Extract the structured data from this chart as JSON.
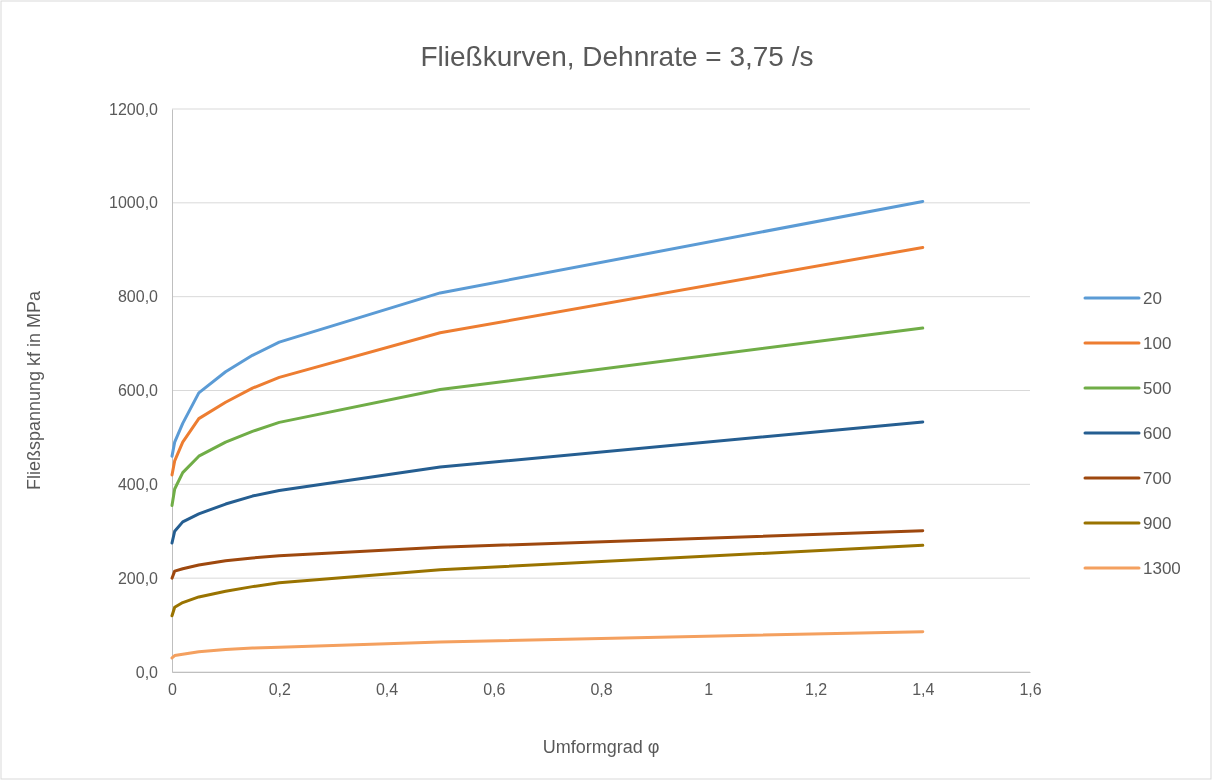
{
  "chart_data": {
    "type": "line",
    "title": "Fließkurven, Dehnrate = 3,75 /s",
    "xlabel": "Umformgrad φ",
    "ylabel": "Fließspannung kf in MPa",
    "x": [
      0,
      0.005,
      0.02,
      0.05,
      0.1,
      0.15,
      0.2,
      0.5,
      1.4
    ],
    "series": [
      {
        "name": "20",
        "color": "#5b9bd5",
        "values": [
          460,
          490,
          530,
          595,
          640,
          675,
          703,
          808,
          1003
        ]
      },
      {
        "name": "100",
        "color": "#ed7d31",
        "values": [
          420,
          450,
          490,
          540,
          575,
          605,
          628,
          723,
          905
        ]
      },
      {
        "name": "500",
        "color": "#70ad47",
        "values": [
          355,
          390,
          425,
          460,
          490,
          513,
          532,
          602,
          733
        ]
      },
      {
        "name": "600",
        "color": "#255e91",
        "values": [
          275,
          300,
          320,
          337,
          358,
          375,
          387,
          437,
          533
        ]
      },
      {
        "name": "700",
        "color": "#9e480e",
        "values": [
          200,
          215,
          220,
          228,
          237,
          243,
          248,
          266,
          301
        ]
      },
      {
        "name": "900",
        "color": "#997300",
        "values": [
          120,
          138,
          148,
          160,
          172,
          182,
          190,
          218,
          270
        ]
      },
      {
        "name": "1300",
        "color": "#f4a05f",
        "values": [
          30,
          35,
          38,
          43,
          48,
          51,
          53,
          64,
          86
        ]
      }
    ],
    "xlim": [
      0,
      1.6
    ],
    "xticks": [
      0,
      {
        "value": 0.2,
        "label": "0,2"
      },
      {
        "value": 0.4,
        "label": "0,4"
      },
      {
        "value": 0.6,
        "label": "0,6"
      },
      {
        "value": 0.8,
        "label": "0,8"
      },
      1,
      {
        "value": 1.2,
        "label": "1,2"
      },
      {
        "value": 1.4,
        "label": "1,4"
      },
      {
        "value": 1.6,
        "label": "1,6"
      }
    ],
    "ylim": [
      0,
      1200
    ],
    "yticks": [
      {
        "value": 0,
        "label": "0,0"
      },
      {
        "value": 200,
        "label": "200,0"
      },
      {
        "value": 400,
        "label": "400,0"
      },
      {
        "value": 600,
        "label": "600,0"
      },
      {
        "value": 800,
        "label": "800,0"
      },
      {
        "value": 1000,
        "label": "1000,0"
      },
      {
        "value": 1200,
        "label": "1200,0"
      }
    ],
    "grid": "y",
    "legend": "right",
    "marker": "none",
    "line_style": "solid"
  }
}
